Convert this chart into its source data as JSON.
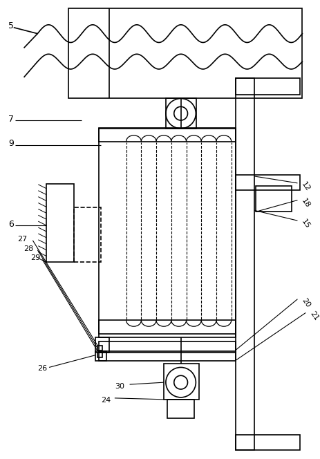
{
  "bg_color": "#ffffff",
  "line_color": "#000000",
  "fig_width": 4.64,
  "fig_height": 6.64,
  "dpi": 100
}
